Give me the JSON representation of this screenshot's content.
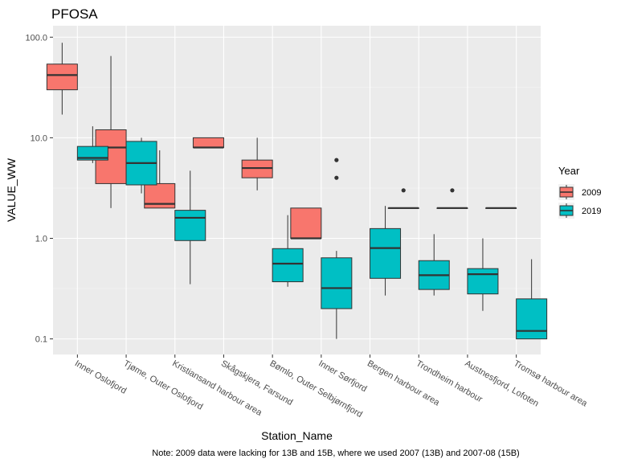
{
  "chart_data": {
    "type": "boxplot",
    "title": "PFOSA",
    "xlabel": "Station_Name",
    "ylabel": "VALUE_WW",
    "y_scale": "log10",
    "ylim": [
      0.07,
      130
    ],
    "y_ticks": [
      {
        "value": 0.1,
        "label": "0.1"
      },
      {
        "value": 1,
        "label": "1.0"
      },
      {
        "value": 10,
        "label": "10.0"
      },
      {
        "value": 100,
        "label": "100.0"
      }
    ],
    "categories": [
      "Inner Oslofjord",
      "Tjøme, Outer Oslofjord",
      "Kristiansand harbour area",
      "Skågskjera, Farsund",
      "Bømlo, Outer Selbjørnfjord",
      "Inner Sørfjord",
      "Bergen harbour area",
      "Trondheim harbour",
      "Austnesfjord, Lofoten",
      "Tromsø harbour area"
    ],
    "legend": {
      "title": "Year",
      "position": "right"
    },
    "series": [
      {
        "name": "2009",
        "color": "#F8766D",
        "boxes": [
          {
            "category": "Inner Oslofjord",
            "min": 17,
            "q1": 30,
            "median": 42,
            "q3": 54,
            "max": 88,
            "outliers": []
          },
          {
            "category": "Tjøme, Outer Oslofjord",
            "min": 2.0,
            "q1": 3.5,
            "median": 8.0,
            "q3": 12,
            "max": 65,
            "outliers": []
          },
          {
            "category": "Kristiansand harbour area",
            "min": 2.0,
            "q1": 2.0,
            "median": 2.2,
            "q3": 3.5,
            "max": 7.5,
            "outliers": []
          },
          {
            "category": "Skågskjera, Farsund",
            "min": 8.0,
            "q1": 8.0,
            "median": 8.0,
            "q3": 10,
            "max": 10,
            "outliers": []
          },
          {
            "category": "Bømlo, Outer Selbjørnfjord",
            "min": 3.0,
            "q1": 4.0,
            "median": 5.0,
            "q3": 6.0,
            "max": 10,
            "outliers": []
          },
          {
            "category": "Inner Sørfjord",
            "min": 1.0,
            "q1": 1.0,
            "median": 1.0,
            "q3": 2.0,
            "max": 2.0,
            "outliers": []
          },
          {
            "category": "Trondheim harbour",
            "min": 2.0,
            "q1": 2.0,
            "median": 2.0,
            "q3": 2.0,
            "max": 2.0,
            "outliers": [
              3.0
            ]
          },
          {
            "category": "Austnesfjord, Lofoten",
            "min": 2.0,
            "q1": 2.0,
            "median": 2.0,
            "q3": 2.0,
            "max": 2.0,
            "outliers": [
              3.0
            ]
          },
          {
            "category": "Tromsø harbour area",
            "min": 2.0,
            "q1": 2.0,
            "median": 2.0,
            "q3": 2.0,
            "max": 2.0,
            "outliers": []
          }
        ]
      },
      {
        "name": "2019",
        "color": "#00BFC4",
        "boxes": [
          {
            "category": "Inner Oslofjord",
            "min": 5.6,
            "q1": 6.0,
            "median": 6.3,
            "q3": 8.2,
            "max": 13,
            "outliers": []
          },
          {
            "category": "Tjøme, Outer Oslofjord",
            "min": 2.8,
            "q1": 3.4,
            "median": 5.6,
            "q3": 9.2,
            "max": 10,
            "outliers": []
          },
          {
            "category": "Kristiansand harbour area",
            "min": 0.35,
            "q1": 0.95,
            "median": 1.6,
            "q3": 1.9,
            "max": 4.7,
            "outliers": []
          },
          {
            "category": "Bømlo, Outer Selbjørnfjord",
            "min": 0.33,
            "q1": 0.37,
            "median": 0.56,
            "q3": 0.79,
            "max": 1.7,
            "outliers": []
          },
          {
            "category": "Inner Sørfjord",
            "min": 0.1,
            "q1": 0.2,
            "median": 0.32,
            "q3": 0.64,
            "max": 0.75,
            "outliers": [
              4.0,
              6.0
            ]
          },
          {
            "category": "Bergen harbour area",
            "min": 0.27,
            "q1": 0.4,
            "median": 0.8,
            "q3": 1.25,
            "max": 2.1,
            "outliers": []
          },
          {
            "category": "Trondheim harbour",
            "min": 0.27,
            "q1": 0.31,
            "median": 0.43,
            "q3": 0.6,
            "max": 1.1,
            "outliers": []
          },
          {
            "category": "Austnesfjord, Lofoten",
            "min": 0.19,
            "q1": 0.28,
            "median": 0.44,
            "q3": 0.5,
            "max": 1.0,
            "outliers": []
          },
          {
            "category": "Tromsø harbour area",
            "min": 0.1,
            "q1": 0.1,
            "median": 0.12,
            "q3": 0.25,
            "max": 0.62,
            "outliers": []
          }
        ]
      }
    ],
    "note": "Note: 2009 data were lacking for 13B and 15B, where we used 2007 (13B) and 2007-08 (15B)"
  }
}
